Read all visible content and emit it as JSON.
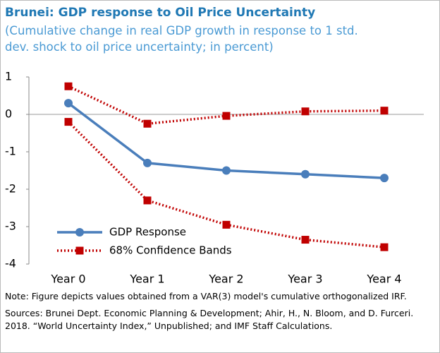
{
  "chart_data": {
    "type": "line",
    "title": "Brunei: GDP response to Oil Price Uncertainty",
    "subtitle": "(Cumulative change in real GDP growth in response to 1 std. dev. shock to oil price uncertainty; in percent)",
    "categories": [
      "Year 0",
      "Year 1",
      "Year 2",
      "Year 3",
      "Year 4"
    ],
    "series": [
      {
        "name": "GDP Response",
        "color": "#4a7ebb",
        "values": [
          0.3,
          -1.3,
          -1.5,
          -1.6,
          -1.7
        ]
      }
    ],
    "bands": {
      "name": "68% Confidence Bands",
      "color": "#c00000",
      "upper": [
        0.75,
        -0.25,
        -0.04,
        0.08,
        0.1
      ],
      "lower": [
        -0.2,
        -2.3,
        -2.95,
        -3.35,
        -3.55
      ]
    },
    "ylim": [
      -4,
      1
    ],
    "yticks": [
      1,
      0,
      -1,
      -2,
      -3,
      -4
    ],
    "note": "Note: Figure depicts values obtained from a VAR(3) model's cumulative orthogonalized IRF.",
    "sources": "Sources: Brunei Dept. Economic Planning & Development; Ahir, H., N. Bloom, and D. Furceri. 2018. “World Uncertainty Index,” Unpublished; and IMF Staff Calculations."
  }
}
